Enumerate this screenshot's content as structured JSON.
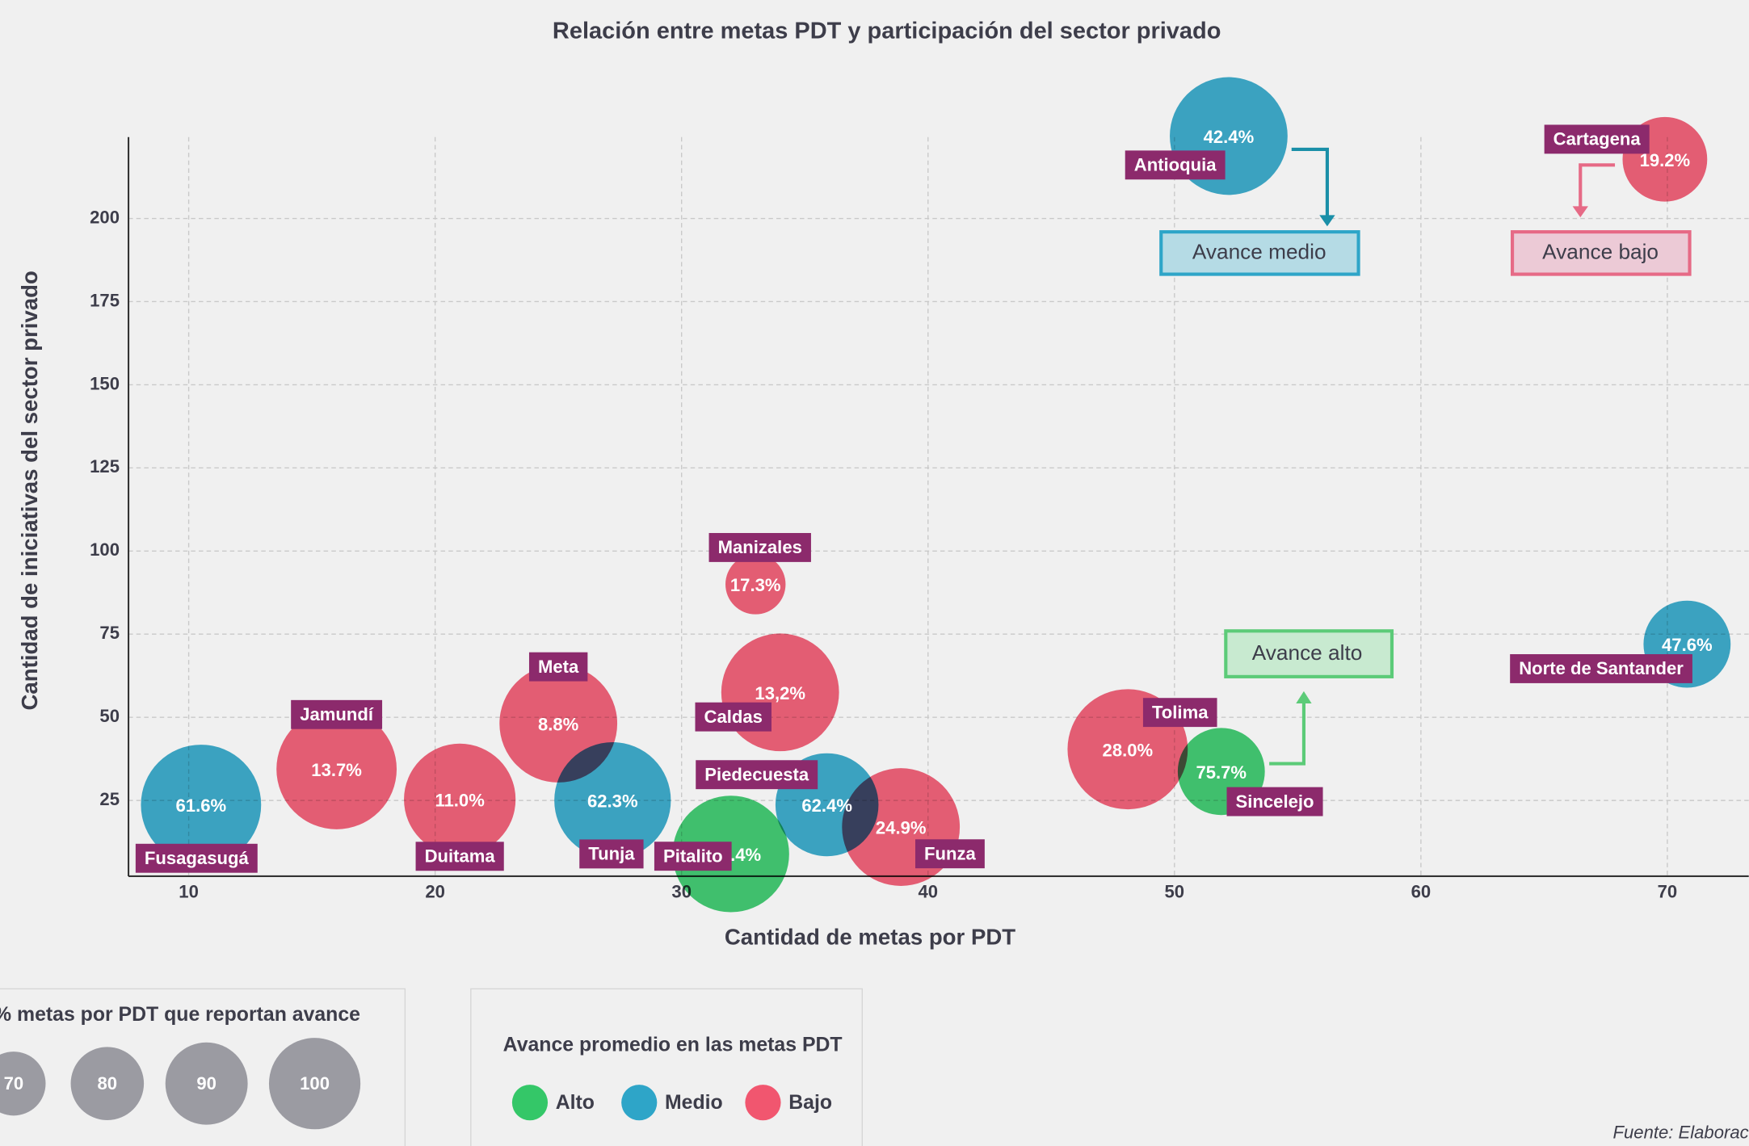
{
  "chart_data": {
    "type": "bubble",
    "title": "Relación entre metas PDT y participación del sector privado",
    "xlabel": "Cantidad de metas por PDT",
    "ylabel": "Cantidad de iniciativas del sector privado",
    "xlim": [
      7.5,
      73.5
    ],
    "ylim": [
      2,
      225
    ],
    "xticks": [
      10,
      20,
      30,
      40,
      50,
      60,
      70
    ],
    "yticks": [
      25,
      50,
      75,
      100,
      125,
      150,
      175,
      200
    ],
    "grid": true,
    "series": [
      {
        "name": "Alto",
        "color": "#34c768",
        "names": [
          "Pitalito",
          "Sincelejo"
        ],
        "x": [
          32.0,
          51.9
        ],
        "values": [
          8.9,
          33.7
        ],
        "sizes": [
          95,
          71
        ],
        "avance_labels": [
          "104.4%",
          "75.7%"
        ]
      },
      {
        "name": "Medio",
        "color": "#2ea5c8",
        "names": [
          "Fusagasugá",
          "Tunja",
          "Piedecuesta",
          "Antioquia",
          "Norte de Santander"
        ],
        "x": [
          10.5,
          27.2,
          35.9,
          52.2,
          70.8
        ],
        "values": [
          23.7,
          25,
          23.7,
          224.8,
          72
        ],
        "sizes": [
          98,
          95,
          84,
          96,
          71
        ],
        "avance_labels": [
          "61.6%",
          "62.3%",
          "62.4%",
          "42.4%",
          "47.6%"
        ]
      },
      {
        "name": "Bajo",
        "color": "#f1566f",
        "names": [
          "Jamundí",
          "Duitama",
          "Meta",
          "Manizales",
          "Caldas",
          "Funza",
          "Tolima",
          "Cartagena"
        ],
        "x": [
          16.0,
          21.0,
          25.0,
          33.0,
          34.0,
          38.9,
          48.1,
          69.9
        ],
        "values": [
          34.4,
          25.3,
          48.1,
          90,
          57.5,
          17,
          40.4,
          217.8
        ],
        "sizes": [
          98,
          91,
          96,
          49,
          96,
          96,
          98,
          69
        ],
        "avance_labels": [
          "13.7%",
          "11.0%",
          "8.8%",
          "17.3%",
          "13,2%",
          "24.9%",
          "28.0%",
          "19.2%"
        ]
      }
    ],
    "annotations": [
      "Avance medio",
      "Avance bajo",
      "Avance alto"
    ],
    "size_legend": {
      "title": "% metas por PDT que reportan avance",
      "values": [
        70,
        80,
        90,
        100
      ]
    },
    "legend_title": "Avance promedio en las metas PDT",
    "source": "Fuente: Elaborac"
  }
}
